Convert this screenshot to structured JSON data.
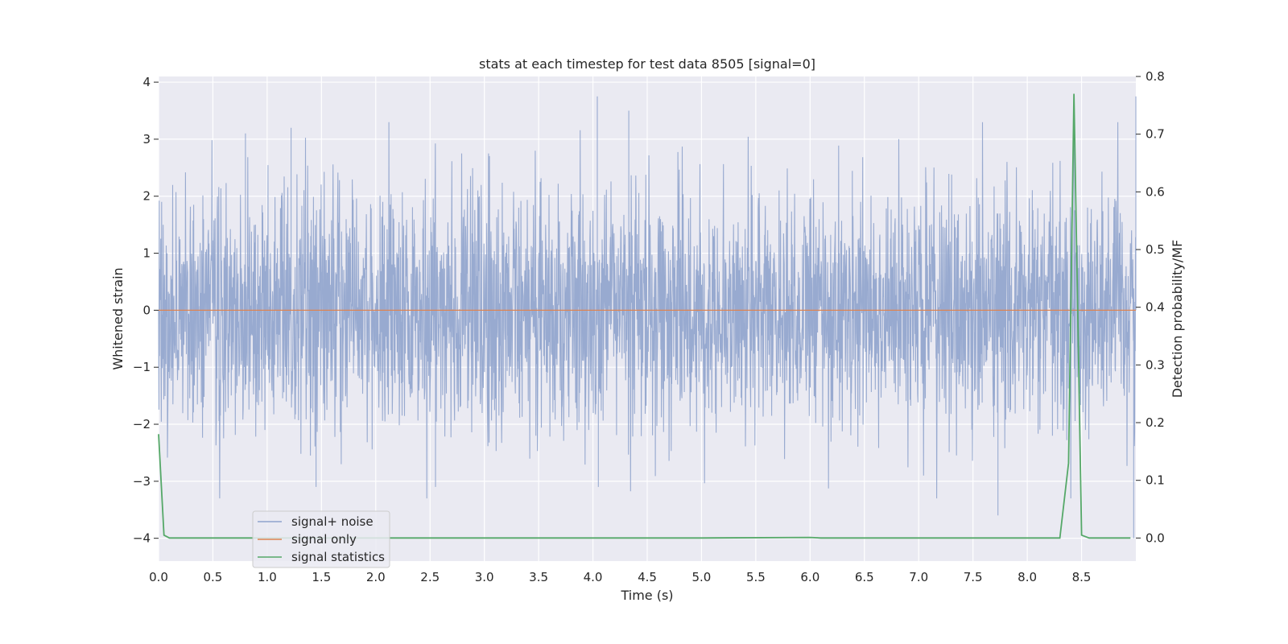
{
  "chart_data": {
    "type": "line",
    "title": "stats at each timestep for test data 8505 [signal=0]",
    "xlabel": "Time (s)",
    "ylabel": "Whitened strain",
    "y2label": "Detection probability/MF",
    "xlim": [
      0,
      9
    ],
    "ylim": [
      -4.4,
      4.1
    ],
    "y2lim": [
      -0.04,
      0.8
    ],
    "xticks": [
      0.0,
      0.5,
      1.0,
      1.5,
      2.0,
      2.5,
      3.0,
      3.5,
      4.0,
      4.5,
      5.0,
      5.5,
      6.0,
      6.5,
      7.0,
      7.5,
      8.0,
      8.5
    ],
    "xtick_labels": [
      "0.0",
      "0.5",
      "1.0",
      "1.5",
      "2.0",
      "2.5",
      "3.0",
      "3.5",
      "4.0",
      "4.5",
      "5.0",
      "5.5",
      "6.0",
      "6.5",
      "7.0",
      "7.5",
      "8.0",
      "8.5"
    ],
    "yticks": [
      -4,
      -3,
      -2,
      -1,
      0,
      1,
      2,
      3,
      4
    ],
    "ytick_labels": [
      "−4",
      "−3",
      "−2",
      "−1",
      "0",
      "1",
      "2",
      "3",
      "4"
    ],
    "y2ticks": [
      0.0,
      0.1,
      0.2,
      0.3,
      0.4,
      0.5,
      0.6,
      0.7,
      0.8
    ],
    "y2tick_labels": [
      "0.0",
      "0.1",
      "0.2",
      "0.3",
      "0.4",
      "0.5",
      "0.6",
      "0.7",
      "0.8"
    ],
    "grid": true,
    "legend_position": "lower-left",
    "series": [
      {
        "name": "signal+ noise",
        "axis": "left",
        "color": "#8fa3cc",
        "style": "dense noise, approx. unit variance, peaks within about ±3.8",
        "x_range": [
          0,
          9
        ],
        "y_range": [
          -4.0,
          3.8
        ],
        "notable_points": [
          [
            4.04,
            3.75
          ],
          [
            4.33,
            3.5
          ],
          [
            0.8,
            3.1
          ],
          [
            1.22,
            3.2
          ],
          [
            8.43,
            3.7
          ],
          [
            9.0,
            3.75
          ],
          [
            1.45,
            -3.1
          ],
          [
            4.05,
            -3.1
          ],
          [
            2.55,
            -3.1
          ],
          [
            7.73,
            -3.6
          ],
          [
            8.98,
            -4.0
          ]
        ]
      },
      {
        "name": "signal only",
        "axis": "left",
        "color": "#dd8452",
        "x": [
          0,
          9
        ],
        "y": [
          0,
          0
        ]
      },
      {
        "name": "signal statistics",
        "axis": "right",
        "color": "#55a868",
        "x": [
          0.0,
          0.05,
          0.1,
          0.15,
          0.5,
          1.0,
          2.0,
          3.0,
          4.0,
          5.0,
          6.0,
          6.1,
          7.0,
          8.0,
          8.3,
          8.38,
          8.43,
          8.5,
          8.57,
          8.7,
          8.95
        ],
        "y": [
          0.18,
          0.005,
          0.0,
          0.0,
          0.0,
          0.0,
          0.0,
          0.0,
          0.0,
          0.0,
          0.001,
          0.0,
          0.0,
          0.0,
          0.0,
          0.13,
          0.77,
          0.005,
          0.0,
          0.0,
          0.0
        ]
      }
    ]
  }
}
